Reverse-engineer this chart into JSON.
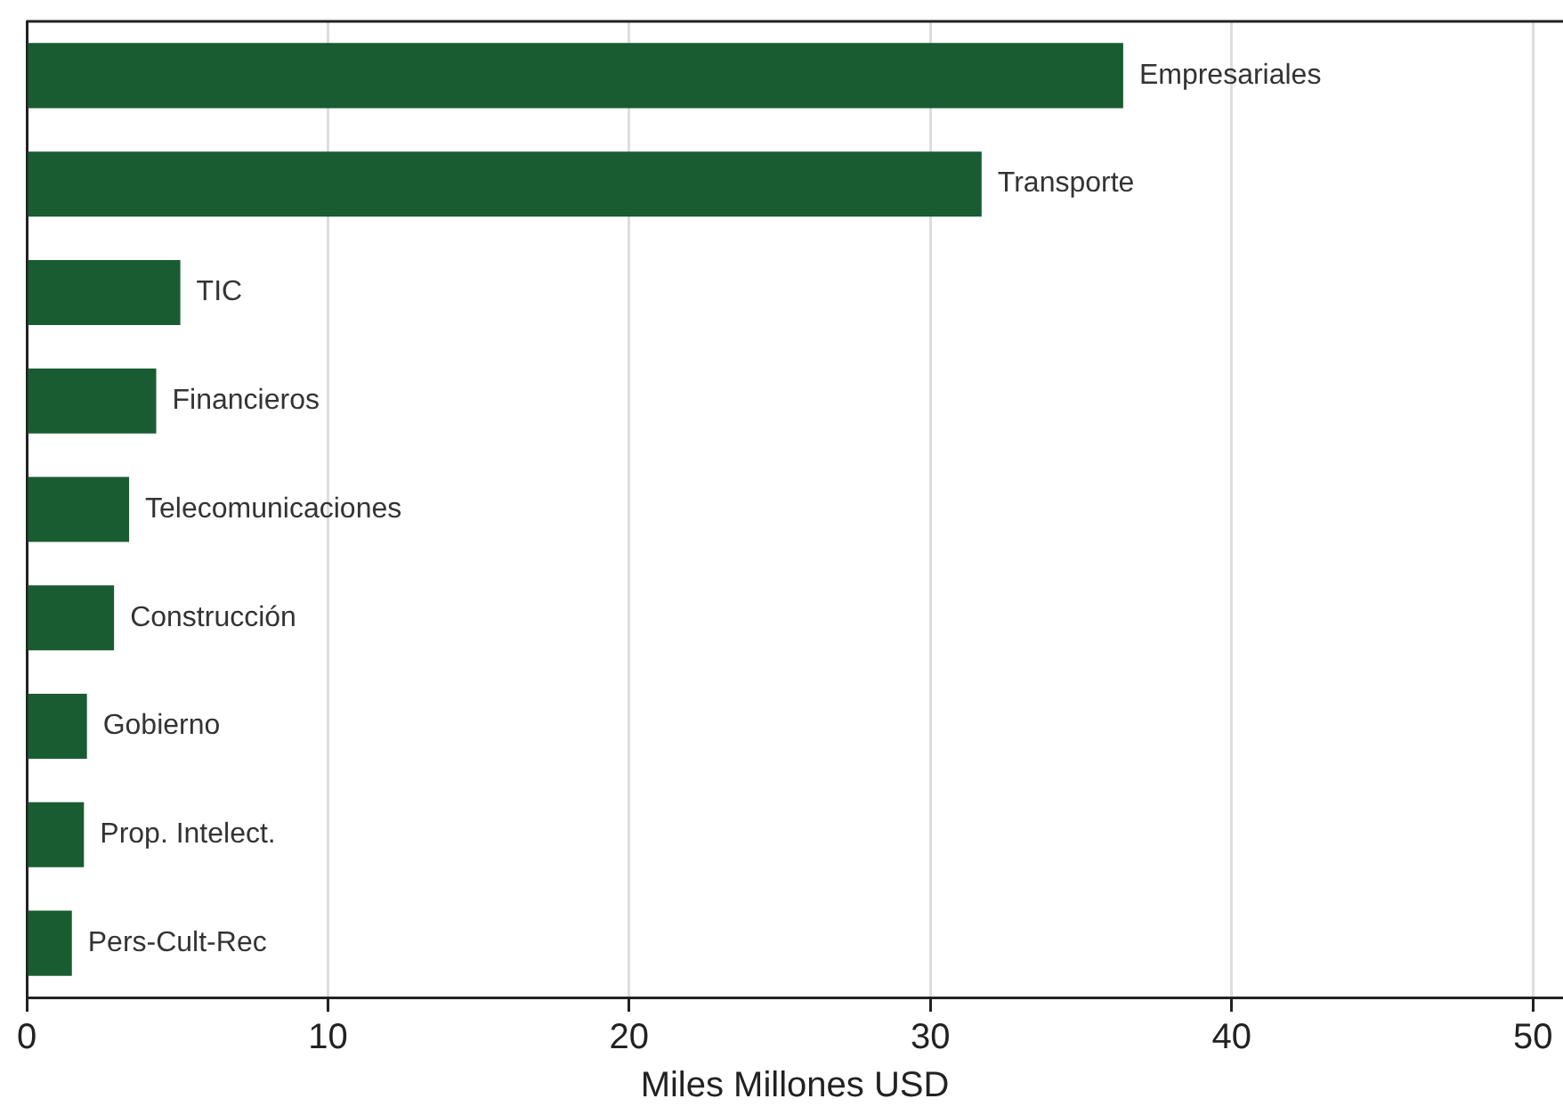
{
  "chart_data": {
    "type": "bar",
    "orientation": "horizontal",
    "xlabel": "Miles Millones USD",
    "categories": [
      "Empresariales",
      "Transporte",
      "TIC",
      "Financieros",
      "Telecomunicaciones",
      "Construcción",
      "Gobierno",
      "Prop. Intelect.",
      "Pers-Cult-Rec"
    ],
    "values": [
      36.4,
      31.7,
      5.1,
      4.3,
      3.4,
      2.9,
      2.0,
      1.9,
      1.5
    ],
    "color": "#1a5c32",
    "xlim": [
      0,
      51
    ],
    "xticks": [
      0,
      10,
      20,
      30,
      40,
      50
    ],
    "grid": "x"
  }
}
